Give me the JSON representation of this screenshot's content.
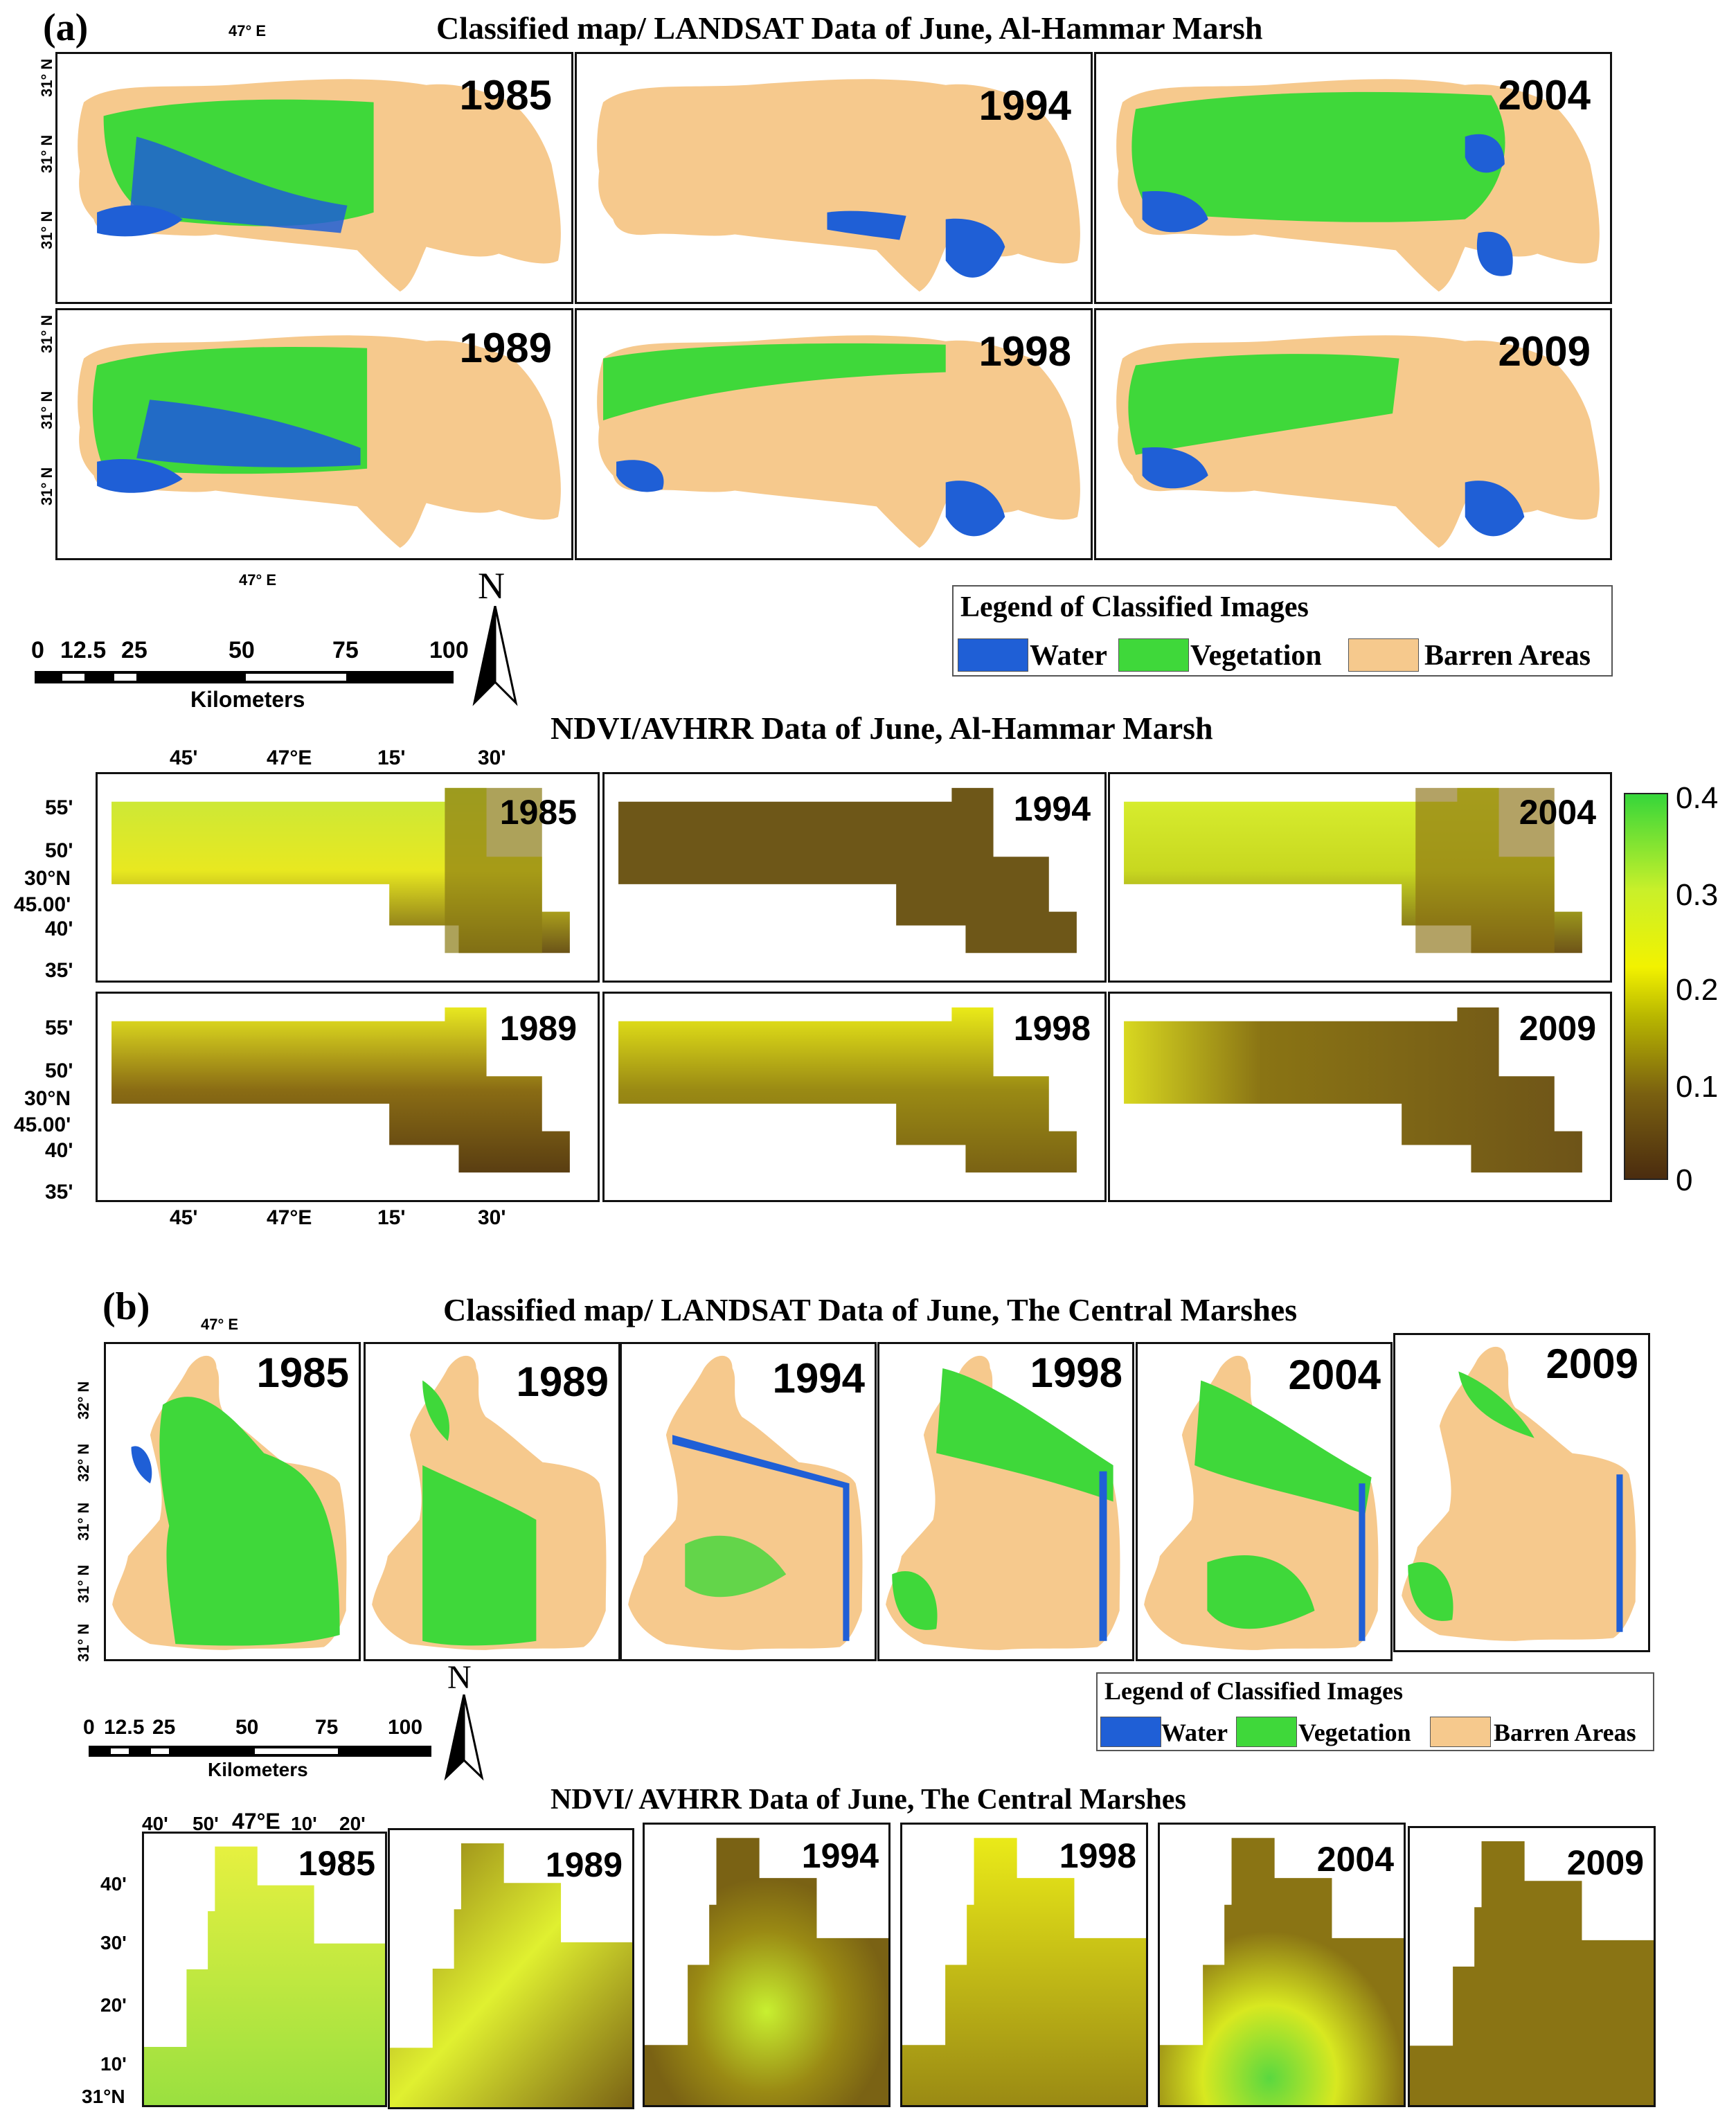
{
  "section_a": {
    "label": "(a)",
    "classified_title": "Classified map/ LANDSAT Data of June, Al-Hammar Marsh",
    "ndvi_title": "NDVI/AVHRR Data of June, Al-Hammar Marsh",
    "classified_years": [
      "1985",
      "1994",
      "2004",
      "1989",
      "1998",
      "2009"
    ],
    "ndvi_years": [
      "1985",
      "1994",
      "2004",
      "1989",
      "1998",
      "2009"
    ],
    "lon_tick_top": "47° E",
    "lon_tick_bottom": "47° E",
    "lat_ticks": [
      "31° N",
      "31° N",
      "31° N",
      "31° N",
      "31° N",
      "31° N"
    ],
    "ndvi_lon_ticks": [
      "45'",
      "47°E",
      "15'",
      "30'"
    ],
    "ndvi_lat_ticks_top": [
      "55'",
      "50'",
      "30°N",
      "45.00'",
      "40'",
      "35'"
    ],
    "ndvi_lat_ticks_bottom": [
      "55'",
      "50'",
      "30°N",
      "45.00'",
      "40'",
      "35'"
    ],
    "north": "N",
    "scale_ticks": [
      "0",
      "12.5",
      "25",
      "50",
      "75",
      "100"
    ],
    "scale_unit": "Kilometers",
    "legend": {
      "title": "Legend of Classified Images",
      "items": [
        {
          "label": "Water",
          "color": "#1f5fd6"
        },
        {
          "label": "Vegetation",
          "color": "#3fd83a"
        },
        {
          "label": "Barren Areas",
          "color": "#f6c98d"
        }
      ]
    },
    "colorbar": {
      "ticks": [
        "0.4",
        "0.3",
        "0.2",
        "0.1",
        "0"
      ]
    }
  },
  "section_b": {
    "label": "(b)",
    "classified_title": "Classified map/ LANDSAT Data of June, The Central Marshes",
    "ndvi_title": "NDVI/ AVHRR Data of June, The Central Marshes",
    "classified_years": [
      "1985",
      "1989",
      "1994",
      "1998",
      "2004",
      "2009"
    ],
    "ndvi_years": [
      "1985",
      "1989",
      "1994",
      "1998",
      "2004",
      "2009"
    ],
    "lon_tick": "47° E",
    "lat_ticks": [
      "32° N",
      "32° N",
      "31° N",
      "31° N",
      "31° N"
    ],
    "ndvi_lon_ticks": [
      "40'",
      "50'",
      "47°E",
      "10'",
      "20'"
    ],
    "ndvi_lat_ticks": [
      "40'",
      "30'",
      "20'",
      "10'",
      "31°N"
    ],
    "north": "N",
    "scale_ticks": [
      "0",
      "12.5",
      "25",
      "50",
      "75",
      "100"
    ],
    "scale_unit": "Kilometers",
    "legend": {
      "title": "Legend of Classified Images",
      "items": [
        {
          "label": "Water",
          "color": "#1f5fd6"
        },
        {
          "label": "Vegetation",
          "color": "#3fd83a"
        },
        {
          "label": "Barren Areas",
          "color": "#f6c98d"
        }
      ]
    }
  }
}
